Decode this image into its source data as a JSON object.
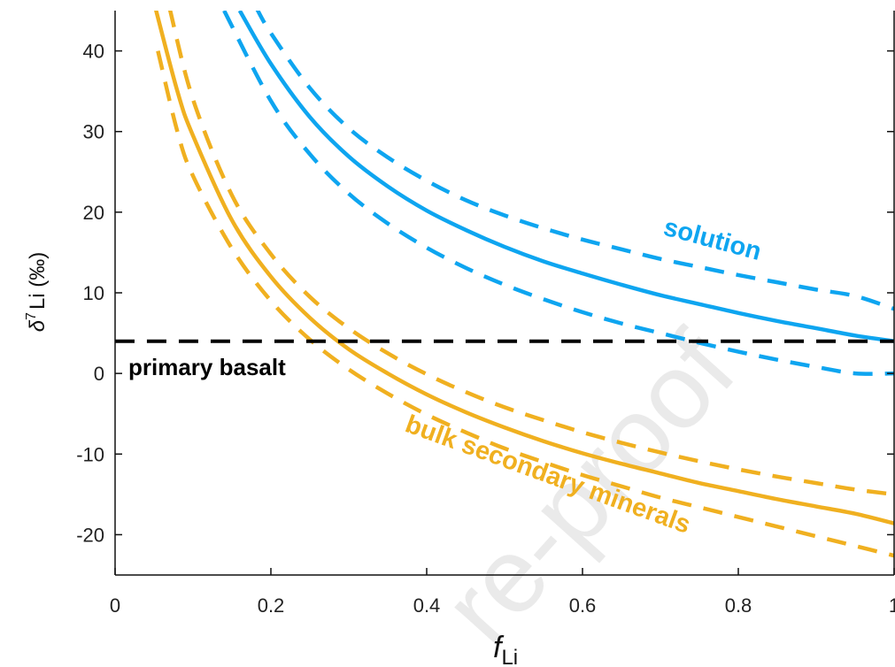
{
  "chart_data": {
    "type": "line",
    "xlabel": {
      "main": "f",
      "sub": "Li"
    },
    "ylabel": {
      "delta": "δ",
      "sup": "7",
      "rest": "Li (‰)"
    },
    "xlim": [
      0,
      1
    ],
    "ylim": [
      -25,
      45
    ],
    "xticks": [
      {
        "value": 0,
        "label": "0"
      },
      {
        "value": 0.2,
        "label": "0.2"
      },
      {
        "value": 0.4,
        "label": "0.4"
      },
      {
        "value": 0.6,
        "label": "0.6"
      },
      {
        "value": 0.8,
        "label": "0.8"
      },
      {
        "value": 1,
        "label": "1"
      }
    ],
    "yticks": [
      {
        "value": -20,
        "label": "-20"
      },
      {
        "value": -10,
        "label": "-10"
      },
      {
        "value": 0,
        "label": "0"
      },
      {
        "value": 10,
        "label": "10"
      },
      {
        "value": 20,
        "label": "20"
      },
      {
        "value": 30,
        "label": "30"
      },
      {
        "value": 40,
        "label": "40"
      }
    ],
    "grid": false,
    "series": [
      {
        "id": "solution-upper",
        "group": "solution",
        "style": "dashed",
        "color": "#0ea5f0",
        "x": [
          0.18,
          0.2,
          0.25,
          0.3,
          0.35,
          0.4,
          0.45,
          0.5,
          0.55,
          0.6,
          0.65,
          0.7,
          0.75,
          0.8,
          0.85,
          0.9,
          0.95,
          1.0
        ],
        "y": [
          45.6,
          42.2,
          35.4,
          30.4,
          26.8,
          23.9,
          21.5,
          19.6,
          18.0,
          16.6,
          15.4,
          14.2,
          13.2,
          12.2,
          11.3,
          10.4,
          9.6,
          8.0
        ]
      },
      {
        "id": "solution-mid",
        "group": "solution",
        "style": "solid",
        "color": "#0ea5f0",
        "x": [
          0.16,
          0.2,
          0.25,
          0.3,
          0.35,
          0.4,
          0.45,
          0.5,
          0.55,
          0.6,
          0.65,
          0.7,
          0.75,
          0.8,
          0.85,
          0.9,
          0.95,
          1.0
        ],
        "y": [
          45.0,
          38.4,
          31.8,
          26.9,
          23.2,
          20.2,
          17.8,
          15.7,
          13.9,
          12.4,
          11.0,
          9.7,
          8.6,
          7.5,
          6.5,
          5.6,
          4.7,
          4.0
        ]
      },
      {
        "id": "solution-lower",
        "group": "solution",
        "style": "dashed",
        "color": "#0ea5f0",
        "x": [
          0.14,
          0.2,
          0.25,
          0.3,
          0.35,
          0.4,
          0.45,
          0.5,
          0.55,
          0.6,
          0.65,
          0.7,
          0.75,
          0.8,
          0.85,
          0.9,
          0.95,
          1.0
        ],
        "y": [
          45.0,
          33.8,
          27.2,
          22.3,
          18.6,
          15.6,
          13.1,
          11.0,
          9.2,
          7.6,
          6.2,
          5.0,
          3.8,
          2.7,
          1.7,
          0.8,
          0.0,
          0.0
        ]
      },
      {
        "id": "secondary-upper",
        "group": "bulk",
        "style": "dashed",
        "color": "#f0b020",
        "x": [
          0.07,
          0.1,
          0.15,
          0.2,
          0.25,
          0.3,
          0.35,
          0.4,
          0.45,
          0.5,
          0.55,
          0.6,
          0.65,
          0.7,
          0.75,
          0.8,
          0.85,
          0.9,
          0.95,
          1.0
        ],
        "y": [
          45.3,
          34.0,
          22.1,
          14.8,
          9.5,
          5.6,
          2.5,
          -0.1,
          -2.3,
          -4.2,
          -5.8,
          -7.3,
          -8.6,
          -9.8,
          -10.9,
          -11.9,
          -12.8,
          -13.6,
          -14.4,
          -15.0
        ]
      },
      {
        "id": "secondary-mid",
        "group": "bulk",
        "style": "solid",
        "color": "#f0b020",
        "x": [
          0.05,
          0.08,
          0.1,
          0.15,
          0.2,
          0.25,
          0.3,
          0.35,
          0.4,
          0.45,
          0.5,
          0.55,
          0.6,
          0.65,
          0.7,
          0.75,
          0.8,
          0.85,
          0.9,
          0.95,
          1.0
        ],
        "y": [
          46.0,
          35.0,
          29.5,
          19.0,
          12.0,
          6.9,
          3.0,
          0.0,
          -2.6,
          -4.8,
          -6.7,
          -8.4,
          -9.9,
          -11.2,
          -12.4,
          -13.6,
          -14.6,
          -15.6,
          -16.5,
          -17.4,
          -18.6
        ]
      },
      {
        "id": "secondary-lower",
        "group": "bulk",
        "style": "dashed",
        "color": "#f0b020",
        "x": [
          0.055,
          0.08,
          0.1,
          0.15,
          0.2,
          0.25,
          0.3,
          0.35,
          0.4,
          0.45,
          0.5,
          0.55,
          0.6,
          0.65,
          0.7,
          0.75,
          0.8,
          0.85,
          0.9,
          0.95,
          1.0
        ],
        "y": [
          40.0,
          30.0,
          24.5,
          15.5,
          9.0,
          4.2,
          0.5,
          -2.5,
          -5.1,
          -7.3,
          -9.3,
          -11.0,
          -12.6,
          -14.0,
          -15.4,
          -16.6,
          -17.8,
          -19.0,
          -20.2,
          -21.4,
          -22.6
        ]
      },
      {
        "id": "primary-basalt",
        "group": "basalt",
        "style": "dashed",
        "color": "#000000",
        "x": [
          0.0,
          1.0
        ],
        "y": [
          4.0,
          4.0
        ]
      }
    ],
    "annotations": [
      {
        "id": "primary-basalt-label",
        "text": "primary basalt",
        "color": "#000000"
      },
      {
        "id": "solution-label",
        "text": "solution",
        "color": "#0ea5f0"
      },
      {
        "id": "bulk-label",
        "text": "bulk secondary minerals",
        "color": "#f0b020"
      }
    ],
    "watermark": "re-proof"
  }
}
